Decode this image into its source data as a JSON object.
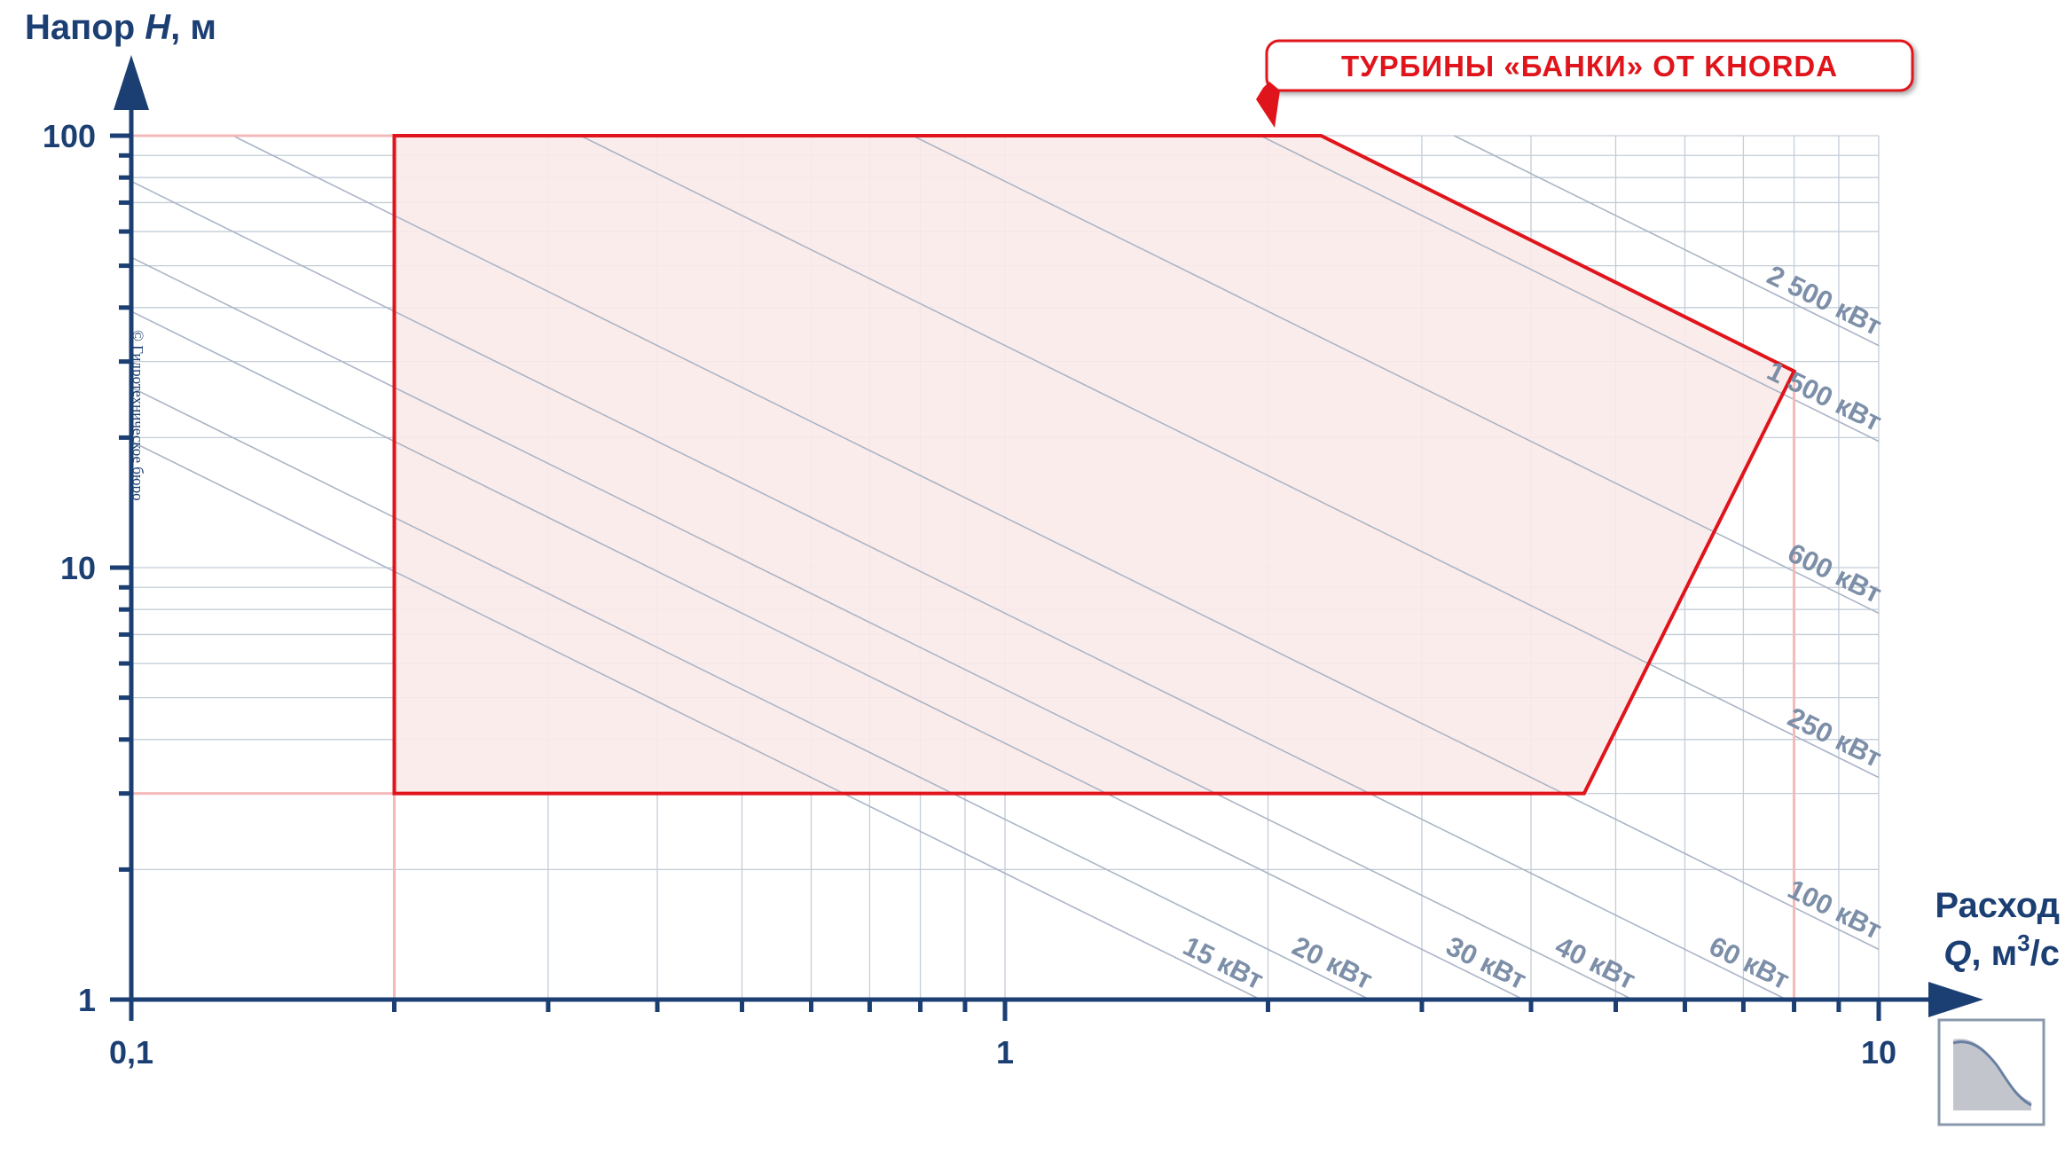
{
  "chart_data": {
    "type": "area",
    "x_scale": "log",
    "y_scale": "log",
    "xlim": [
      0.1,
      10
    ],
    "ylim": [
      1,
      100
    ],
    "grid": true,
    "ylabel": {
      "prefix": "Напор ",
      "var": "H",
      "suffix": ", м"
    },
    "xlabel": {
      "line1": "Расход",
      "var": "Q",
      "suffix": ", м",
      "sup": "3",
      "tail": "/с"
    },
    "x_ticks": [
      {
        "value": 0.1,
        "label": "0,1"
      },
      {
        "value": 1,
        "label": "1"
      },
      {
        "value": 10,
        "label": "10"
      }
    ],
    "y_ticks": [
      {
        "value": 1,
        "label": "1"
      },
      {
        "value": 10,
        "label": "10"
      },
      {
        "value": 100,
        "label": "100"
      }
    ],
    "operating_region": {
      "name": "ТУРБИНЫ «БАНКИ» ОТ KHORDA",
      "color": "#e0141b",
      "fill": "#fbeaea",
      "points": [
        [
          0.2,
          3
        ],
        [
          0.2,
          100
        ],
        [
          2.3,
          100
        ],
        [
          8,
          28.5
        ],
        [
          4.6,
          3
        ]
      ]
    },
    "power_lines": [
      {
        "label": "15 кВт",
        "kw": 15
      },
      {
        "label": "20 кВт",
        "kw": 20
      },
      {
        "label": "30 кВт",
        "kw": 30
      },
      {
        "label": "40 кВт",
        "kw": 40
      },
      {
        "label": "60 кВт",
        "kw": 60
      },
      {
        "label": "100 кВт",
        "kw": 100
      },
      {
        "label": "250 кВт",
        "kw": 250
      },
      {
        "label": "600 кВт",
        "kw": 600
      },
      {
        "label": "1 500 кВт",
        "kw": 1500
      },
      {
        "label": "2 500 кВт",
        "kw": 2500
      }
    ]
  },
  "watermark": "© Гидротехническое бюро",
  "colors": {
    "axis": "#1b3f73",
    "grid": "#c3cdd8",
    "power_line": "#aab5c5",
    "region": "#e0141b",
    "region_fill": "#fbeaea",
    "guide": "#f4b9b9"
  },
  "logo_icon": "turbine-curve-icon"
}
